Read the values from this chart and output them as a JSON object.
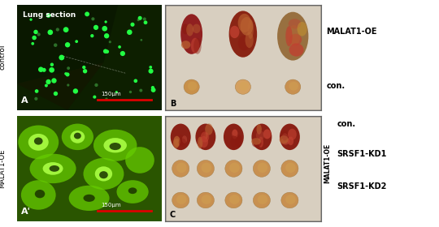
{
  "fig_width": 5.4,
  "fig_height": 2.8,
  "dpi": 100,
  "panel_A_label": "A",
  "panel_A_prime_label": "A'",
  "panel_B_label": "B",
  "panel_C_label": "C",
  "scale_bar_text": "150μm",
  "top_left_label": "Lung section",
  "left_label_top": "control",
  "left_label_bottom": "MALAT1-OE",
  "right_label_B_top": "MALAT1-OE",
  "right_label_B_bottom": "con.",
  "right_label_C_top": "con.",
  "right_label_C_mid": "SRSF1-KD1",
  "right_label_C_bot": "SRSF1-KD2",
  "right_label_C_vert": "MALAT1-OE",
  "panel_A_dark_bg": "#0d1f00",
  "panel_A_mid_bg": "#1a3300",
  "gfp_green": "#22ff44",
  "panel_Ap_bg": "#2a5500",
  "panel_Ap_bright": "#66cc00",
  "panel_Ap_brighter": "#aafe44",
  "panel_B_bg": "#ddd5c8",
  "panel_C_bg": "#ddd5c8",
  "tumor_red1": "#8b2020",
  "tumor_red2": "#a03520",
  "tumor_tan1": "#c8904a",
  "tumor_tan2": "#d4a060",
  "tumor_olive": "#b8a030",
  "scale_bar_color": "#dd0000",
  "border_color": "#666666"
}
